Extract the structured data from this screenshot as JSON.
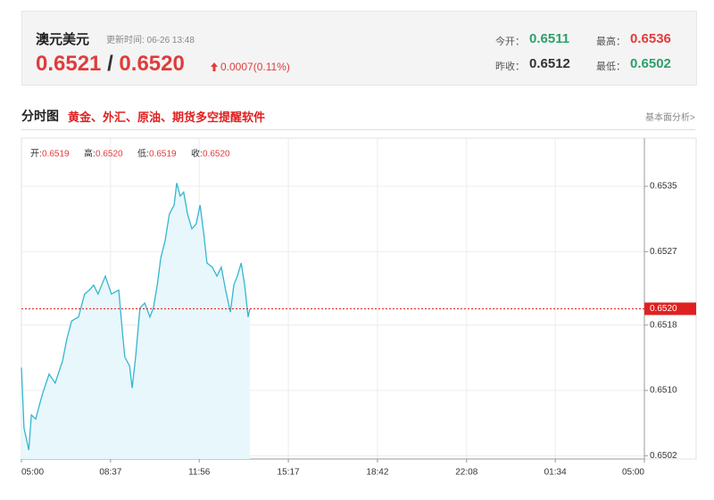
{
  "header": {
    "title": "澳元美元",
    "update_time": "更新时间: 06-26 13:48",
    "bid": "0.6521",
    "separator": "/",
    "ask": "0.6520",
    "change": "0.0007(0.11%)",
    "stats": [
      {
        "label": "今开：",
        "value": "0.6511",
        "color": "#2e9f6b"
      },
      {
        "label": "最高：",
        "value": "0.6536",
        "color": "#e03c3c"
      },
      {
        "label": "昨收：",
        "value": "0.6512",
        "color": "#333333"
      },
      {
        "label": "最低：",
        "value": "0.6502",
        "color": "#2e9f6b"
      }
    ]
  },
  "section": {
    "title": "分时图",
    "promo": "黄金、外汇、原油、期货多空提醒软件",
    "link": "基本面分析>"
  },
  "chart_data": {
    "type": "area",
    "ohlc": [
      {
        "label": "开:",
        "value": "0.6519"
      },
      {
        "label": "高:",
        "value": "0.6520"
      },
      {
        "label": "低:",
        "value": "0.6519"
      },
      {
        "label": "收:",
        "value": "0.6520"
      }
    ],
    "x": [
      0,
      6,
      17,
      23,
      33,
      41,
      50,
      64,
      78,
      95,
      105,
      116,
      132,
      146,
      157,
      167,
      177,
      194,
      208,
      225,
      233,
      239,
      250,
      256,
      264,
      274,
      285,
      297,
      305,
      314,
      322,
      332,
      342,
      353,
      359,
      367,
      375,
      384,
      394,
      404,
      413,
      421,
      429,
      441,
      452,
      462,
      472,
      483,
      491,
      499,
      508,
      516,
      524,
      528
    ],
    "values": [
      0.65128,
      0.65054,
      0.65027,
      0.6507,
      0.65065,
      0.65081,
      0.65098,
      0.6512,
      0.65109,
      0.65136,
      0.65163,
      0.65185,
      0.6519,
      0.65218,
      0.65223,
      0.65229,
      0.65218,
      0.6524,
      0.65218,
      0.65223,
      0.65174,
      0.65141,
      0.6513,
      0.65103,
      0.65141,
      0.65201,
      0.65207,
      0.6519,
      0.65201,
      0.65229,
      0.65262,
      0.65283,
      0.65316,
      0.65327,
      0.65354,
      0.65338,
      0.65343,
      0.65316,
      0.65298,
      0.65304,
      0.65327,
      0.65294,
      0.65256,
      0.65251,
      0.6524,
      0.65251,
      0.65223,
      0.65196,
      0.65229,
      0.6524,
      0.65256,
      0.65229,
      0.6519,
      0.652
    ],
    "color": "#35b6cf",
    "fill": "#e8f7fb",
    "xlim": [
      0,
      1440
    ],
    "xticks": [
      {
        "value": 0,
        "label": "05:00"
      },
      {
        "value": 206,
        "label": "08:37"
      },
      {
        "value": 411,
        "label": "11:56"
      },
      {
        "value": 617,
        "label": "15:17"
      },
      {
        "value": 823,
        "label": "18:42"
      },
      {
        "value": 1029,
        "label": "22:08"
      },
      {
        "value": 1234,
        "label": "01:34"
      },
      {
        "value": 1440,
        "label": "05:00"
      }
    ],
    "ylim": [
      0.65016,
      0.65409
    ],
    "yticks": [
      0.6535,
      0.6527,
      0.6518,
      {
        "value": 0.651,
        "label": "0.6510"
      },
      0.6502
    ],
    "grid": true,
    "current": {
      "value": 0.652,
      "label": "0.6520",
      "color": "#e02020"
    }
  }
}
